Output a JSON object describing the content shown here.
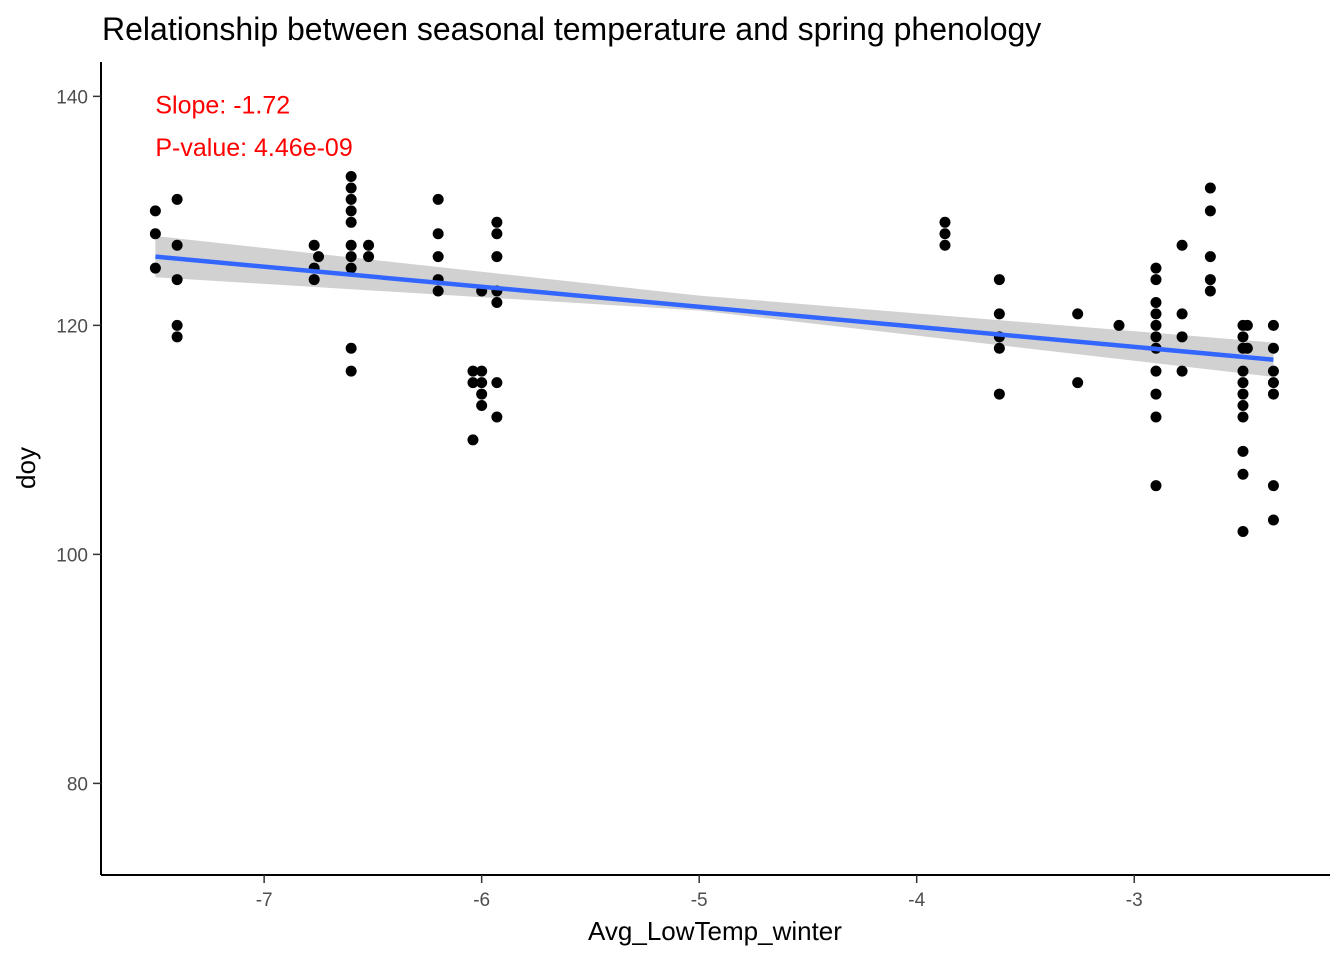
{
  "chart_data": {
    "type": "scatter",
    "title": "Relationship between seasonal temperature and spring phenology",
    "xlabel": "Avg_LowTemp_winter",
    "ylabel": "doy",
    "xlim": [
      -7.75,
      -2.1
    ],
    "ylim": [
      72,
      143
    ],
    "x_ticks": [
      -7,
      -6,
      -5,
      -4,
      -3
    ],
    "x_tick_labels": [
      "-7",
      "-6",
      "-5",
      "-4",
      "-3"
    ],
    "y_ticks": [
      80,
      100,
      120,
      140
    ],
    "y_tick_labels": [
      "80",
      "100",
      "120",
      "140"
    ],
    "grid": false,
    "legend": "none",
    "points": [
      [
        -7.5,
        130
      ],
      [
        -7.5,
        128
      ],
      [
        -7.5,
        125
      ],
      [
        -7.4,
        131
      ],
      [
        -7.4,
        127
      ],
      [
        -7.4,
        124
      ],
      [
        -7.4,
        120
      ],
      [
        -7.4,
        119
      ],
      [
        -6.77,
        127
      ],
      [
        -6.77,
        125
      ],
      [
        -6.77,
        124
      ],
      [
        -6.75,
        126
      ],
      [
        -6.6,
        133
      ],
      [
        -6.6,
        132
      ],
      [
        -6.6,
        131
      ],
      [
        -6.6,
        130
      ],
      [
        -6.6,
        129
      ],
      [
        -6.6,
        127
      ],
      [
        -6.6,
        126
      ],
      [
        -6.6,
        125
      ],
      [
        -6.6,
        118
      ],
      [
        -6.6,
        116
      ],
      [
        -6.52,
        127
      ],
      [
        -6.52,
        126
      ],
      [
        -6.2,
        131
      ],
      [
        -6.2,
        128
      ],
      [
        -6.2,
        126
      ],
      [
        -6.2,
        124
      ],
      [
        -6.2,
        123
      ],
      [
        -6.04,
        116
      ],
      [
        -6.04,
        115
      ],
      [
        -6.04,
        110
      ],
      [
        -6.0,
        123
      ],
      [
        -6.0,
        116
      ],
      [
        -6.0,
        115
      ],
      [
        -6.0,
        114
      ],
      [
        -6.0,
        113
      ],
      [
        -5.93,
        129
      ],
      [
        -5.93,
        128
      ],
      [
        -5.93,
        126
      ],
      [
        -5.93,
        123
      ],
      [
        -5.93,
        122
      ],
      [
        -5.93,
        115
      ],
      [
        -5.93,
        112
      ],
      [
        -3.87,
        129
      ],
      [
        -3.87,
        128
      ],
      [
        -3.87,
        127
      ],
      [
        -3.62,
        124
      ],
      [
        -3.62,
        121
      ],
      [
        -3.62,
        119
      ],
      [
        -3.62,
        118
      ],
      [
        -3.62,
        114
      ],
      [
        -3.26,
        121
      ],
      [
        -3.26,
        115
      ],
      [
        -3.07,
        120
      ],
      [
        -2.9,
        125
      ],
      [
        -2.9,
        124
      ],
      [
        -2.9,
        122
      ],
      [
        -2.9,
        121
      ],
      [
        -2.9,
        120
      ],
      [
        -2.9,
        119
      ],
      [
        -2.9,
        118
      ],
      [
        -2.9,
        116
      ],
      [
        -2.9,
        114
      ],
      [
        -2.9,
        112
      ],
      [
        -2.9,
        106
      ],
      [
        -2.78,
        127
      ],
      [
        -2.78,
        121
      ],
      [
        -2.78,
        119
      ],
      [
        -2.78,
        116
      ],
      [
        -2.65,
        132
      ],
      [
        -2.65,
        130
      ],
      [
        -2.65,
        126
      ],
      [
        -2.65,
        124
      ],
      [
        -2.65,
        123
      ],
      [
        -2.5,
        120
      ],
      [
        -2.5,
        119
      ],
      [
        -2.5,
        118
      ],
      [
        -2.5,
        116
      ],
      [
        -2.5,
        115
      ],
      [
        -2.5,
        114
      ],
      [
        -2.5,
        113
      ],
      [
        -2.5,
        112
      ],
      [
        -2.5,
        109
      ],
      [
        -2.5,
        107
      ],
      [
        -2.5,
        102
      ],
      [
        -2.48,
        120
      ],
      [
        -2.48,
        118
      ],
      [
        -2.36,
        120
      ],
      [
        -2.36,
        118
      ],
      [
        -2.36,
        116
      ],
      [
        -2.36,
        115
      ],
      [
        -2.36,
        114
      ],
      [
        -2.36,
        106
      ],
      [
        -2.36,
        103
      ]
    ],
    "fit_line": {
      "x": [
        -7.5,
        -2.36
      ],
      "y": [
        126.0,
        117.0
      ],
      "color": "#3366ff"
    },
    "confidence_band": {
      "x": [
        -7.5,
        -5.0,
        -2.36
      ],
      "lower": [
        124.2,
        121.3,
        115.5
      ],
      "upper": [
        127.8,
        122.6,
        118.5
      ],
      "color": "#cccccc"
    },
    "annotations": [
      {
        "text": "Slope: -1.72",
        "x": -7.5,
        "y": 138.5,
        "color": "#ff0000"
      },
      {
        "text": "P-value: 4.46e-09",
        "x": -7.5,
        "y": 134.8,
        "color": "#ff0000"
      }
    ],
    "point_color": "#000000"
  }
}
